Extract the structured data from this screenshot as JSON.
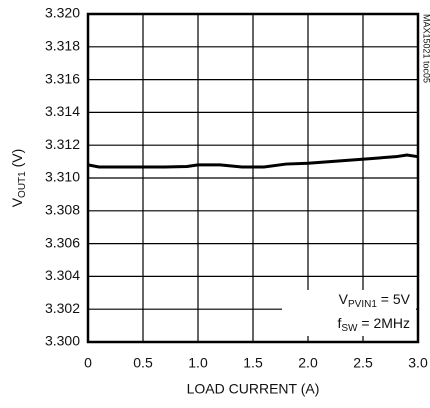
{
  "chart_data": {
    "type": "line",
    "y_label": {
      "main": "V",
      "sub": "OUT1",
      "rest": " (V)"
    },
    "x_label": "LOAD CURRENT (A)",
    "side_note": "MAX15021 toc05",
    "annotations": [
      {
        "main": "V",
        "sub": "PVIN1",
        "rest": " = 5V"
      },
      {
        "main": "f",
        "sub": "SW",
        "rest": " = 2MHz"
      }
    ],
    "x": [
      0,
      0.1,
      0.3,
      0.5,
      0.7,
      0.9,
      1.0,
      1.2,
      1.4,
      1.6,
      1.8,
      2.0,
      2.2,
      2.4,
      2.6,
      2.8,
      2.9,
      3.0
    ],
    "series": [
      {
        "color": "#000000",
        "values": [
          3.3108,
          3.31067,
          3.31067,
          3.31067,
          3.31067,
          3.3107,
          3.3108,
          3.3108,
          3.31067,
          3.31067,
          3.31085,
          3.3109,
          3.311,
          3.3111,
          3.3112,
          3.3113,
          3.3114,
          3.3113
        ]
      }
    ],
    "xlim": [
      0,
      3
    ],
    "ylim": [
      3.3,
      3.32
    ],
    "xticks": [
      0,
      0.5,
      {
        "value": 1,
        "label": "1.0"
      },
      1.5,
      {
        "value": 2,
        "label": "2.0"
      },
      2.5,
      {
        "value": 3,
        "label": "3.0"
      }
    ],
    "yticks": [
      {
        "value": 3.3,
        "label": "3.300"
      },
      {
        "value": 3.302,
        "label": "3.302"
      },
      {
        "value": 3.304,
        "label": "3.304"
      },
      {
        "value": 3.306,
        "label": "3.306"
      },
      {
        "value": 3.308,
        "label": "3.308"
      },
      {
        "value": 3.31,
        "label": "3.310"
      },
      {
        "value": 3.312,
        "label": "3.312"
      },
      {
        "value": 3.314,
        "label": "3.314"
      },
      {
        "value": 3.316,
        "label": "3.316"
      },
      {
        "value": 3.318,
        "label": "3.318"
      },
      {
        "value": 3.32,
        "label": "3.320"
      }
    ],
    "grid": true
  }
}
